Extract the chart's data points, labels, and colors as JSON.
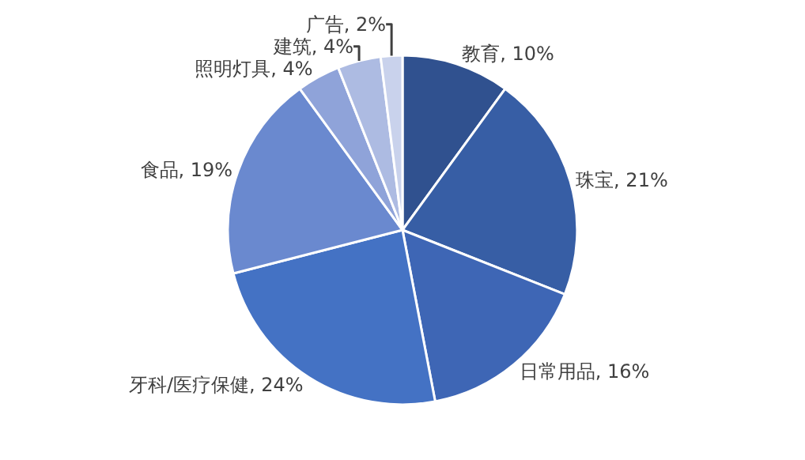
{
  "chart_data": {
    "type": "pie",
    "categories": [
      "教育",
      "珠宝",
      "日常用品",
      "牙科/医疗保健",
      "食品",
      "照明灯具",
      "建筑",
      "广告"
    ],
    "values": [
      10,
      21,
      16,
      24,
      19,
      4,
      4,
      2
    ],
    "value_labels": [
      "10%",
      "21%",
      "16%",
      "24%",
      "19%",
      "4%",
      "4%",
      "2%"
    ],
    "colors": [
      "#30518f",
      "#375ea5",
      "#3e66b5",
      "#4472c4",
      "#6a89cf",
      "#8fa3d9",
      "#adbbe2",
      "#c9d2ec"
    ],
    "legend": false
  }
}
